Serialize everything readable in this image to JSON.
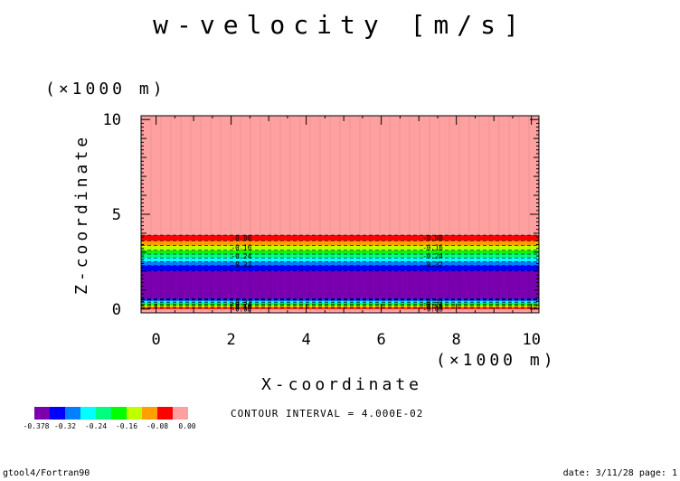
{
  "chart_data": {
    "type": "heatmap",
    "title": "w-velocity [m/s]",
    "xlabel": "X-coordinate",
    "ylabel": "Z-coordinate",
    "x_unit": "(×1000 m)",
    "y_unit": "(×1000 m)",
    "xlim": [
      -0.4,
      10.2
    ],
    "ylim": [
      -0.2,
      10.2
    ],
    "x_ticks": [
      "0",
      "2",
      "4",
      "6",
      "8",
      "10"
    ],
    "y_ticks": [
      "0",
      "5",
      "10"
    ],
    "contour_interval_text": "CONTOUR INTERVAL = 4.000E-02",
    "colorbar": {
      "labels": [
        "-0.378",
        "-0.32",
        "-0.24",
        "-0.16",
        "-0.08",
        "0.00"
      ],
      "colors": [
        "#7b00b0",
        "#0000ff",
        "#0080ff",
        "#00ffff",
        "#00ff80",
        "#00ff00",
        "#c0ff00",
        "#ffa000",
        "#ff0000",
        "#ffa0a0"
      ]
    },
    "bands": [
      {
        "z0": -0.2,
        "z1": 0.0,
        "color": "#ffa0a0"
      },
      {
        "z0": 0.0,
        "z1": 0.07,
        "color": "#ff0000"
      },
      {
        "z0": 0.07,
        "z1": 0.14,
        "color": "#ffa000"
      },
      {
        "z0": 0.14,
        "z1": 0.2,
        "color": "#c0ff00"
      },
      {
        "z0": 0.2,
        "z1": 0.27,
        "color": "#00ff00"
      },
      {
        "z0": 0.27,
        "z1": 0.34,
        "color": "#00ff80"
      },
      {
        "z0": 0.34,
        "z1": 0.42,
        "color": "#00ffff"
      },
      {
        "z0": 0.42,
        "z1": 0.48,
        "color": "#0080ff"
      },
      {
        "z0": 0.48,
        "z1": 0.55,
        "color": "#0000ff"
      },
      {
        "z0": 0.55,
        "z1": 2.0,
        "color": "#7b00b0"
      },
      {
        "z0": 2.0,
        "z1": 2.3,
        "color": "#0000ff"
      },
      {
        "z0": 2.3,
        "z1": 2.5,
        "color": "#0080ff"
      },
      {
        "z0": 2.5,
        "z1": 2.7,
        "color": "#00ffff"
      },
      {
        "z0": 2.7,
        "z1": 2.9,
        "color": "#00ff80"
      },
      {
        "z0": 2.9,
        "z1": 3.1,
        "color": "#00ff00"
      },
      {
        "z0": 3.1,
        "z1": 3.35,
        "color": "#c0ff00"
      },
      {
        "z0": 3.35,
        "z1": 3.6,
        "color": "#ffa000"
      },
      {
        "z0": 3.6,
        "z1": 3.9,
        "color": "#ff0000"
      },
      {
        "z0": 3.9,
        "z1": 10.2,
        "color": "#ffa0a0"
      }
    ],
    "contour_labels": [
      {
        "text": "-0.08",
        "x": 2.0,
        "z": 3.75
      },
      {
        "text": "-0.16",
        "x": 2.0,
        "z": 3.25
      },
      {
        "text": "-0.24",
        "x": 2.0,
        "z": 2.8
      },
      {
        "text": "-0.32",
        "x": 2.0,
        "z": 2.35
      },
      {
        "text": "-0.08",
        "x": 7.1,
        "z": 3.75
      },
      {
        "text": "-0.16",
        "x": 7.1,
        "z": 3.25
      },
      {
        "text": "-0.24",
        "x": 7.1,
        "z": 2.8
      },
      {
        "text": "-0.32",
        "x": 7.1,
        "z": 2.35
      },
      {
        "text": "-0.32",
        "x": 2.0,
        "z": 0.35
      },
      {
        "text": "-0.24",
        "x": 2.0,
        "z": 0.22
      },
      {
        "text": "-0.16",
        "x": 2.0,
        "z": 0.12
      },
      {
        "text": "-0.08",
        "x": 2.0,
        "z": 0.02
      },
      {
        "text": "-0.32",
        "x": 7.1,
        "z": 0.35
      },
      {
        "text": "-0.24",
        "x": 7.1,
        "z": 0.22
      },
      {
        "text": "-0.16",
        "x": 7.1,
        "z": 0.12
      },
      {
        "text": "-0.08",
        "x": 7.1,
        "z": 0.02
      }
    ],
    "grid": false
  },
  "footer": {
    "left": "gtool4/Fortran90",
    "right": "date: 3/11/28 page: 1"
  }
}
